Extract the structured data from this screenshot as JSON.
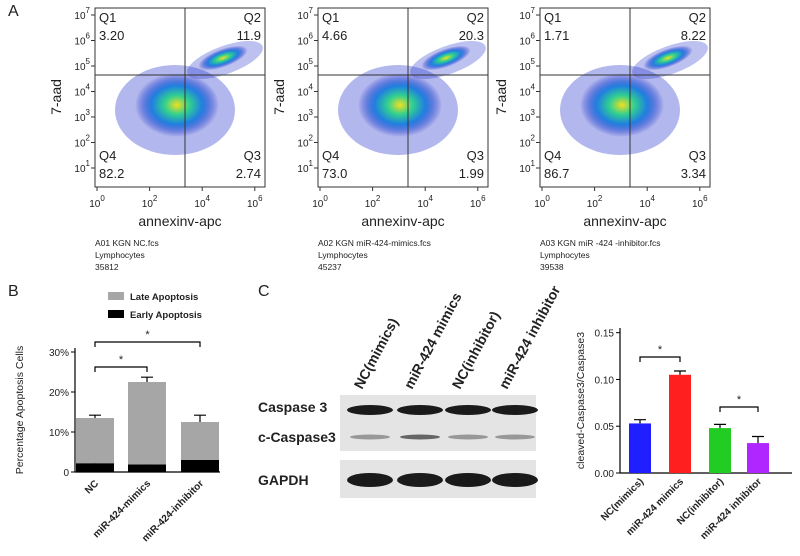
{
  "panel_labels": [
    "A",
    "B",
    "C"
  ],
  "flow_plots": {
    "x_label": "annexinv-apc",
    "y_label": "7-aad",
    "tick_base": "10",
    "xtick_exps": [
      0,
      2,
      4,
      6
    ],
    "ytick_exps": [
      1,
      2,
      3,
      4,
      5,
      6,
      7
    ],
    "plots": [
      {
        "quadrants": [
          {
            "label": "Q1",
            "value": "3.20"
          },
          {
            "label": "Q2",
            "value": "11.9"
          },
          {
            "label": "Q3",
            "value": "2.74"
          },
          {
            "label": "Q4",
            "value": "82.2"
          }
        ],
        "caption": [
          "A01 KGN NC.fcs",
          "Lymphocytes",
          "35812"
        ]
      },
      {
        "quadrants": [
          {
            "label": "Q1",
            "value": "4.66"
          },
          {
            "label": "Q2",
            "value": "20.3"
          },
          {
            "label": "Q3",
            "value": "1.99"
          },
          {
            "label": "Q4",
            "value": "73.0"
          }
        ],
        "caption": [
          "A02 KGN miR-424-mimics.fcs",
          "Lymphocytes",
          "45237"
        ]
      },
      {
        "quadrants": [
          {
            "label": "Q1",
            "value": "1.71"
          },
          {
            "label": "Q2",
            "value": "8.22"
          },
          {
            "label": "Q3",
            "value": "3.34"
          },
          {
            "label": "Q4",
            "value": "86.7"
          }
        ],
        "caption": [
          "A03 KGN miR -424 -inhibitor.fcs",
          "Lymphocytes",
          "39538"
        ]
      }
    ]
  },
  "blot": {
    "lanes": [
      "NC(mimics)",
      "miR-424 mimics",
      "NC(inhibitor)",
      "miR-424 inhibitor"
    ],
    "rows": [
      "Caspase 3",
      "c-Caspase3",
      "GAPDH"
    ]
  },
  "chart_data": [
    {
      "type": "bar",
      "stacked": true,
      "y_label": "Percentage Apoptosis Cells",
      "categories": [
        "NC",
        "miR-424-mimics",
        "miR-424-inhibitor"
      ],
      "series": [
        {
          "name": "Early Apoptosis",
          "color": "#000000",
          "values": [
            2.2,
            1.9,
            3.0
          ],
          "errors": [
            0.5,
            0.3,
            0.4
          ]
        },
        {
          "name": "Late Apoptosis",
          "color": "#a6a6a6",
          "values": [
            11.3,
            20.6,
            9.5
          ],
          "errors": [
            0.7,
            1.2,
            1.7
          ]
        }
      ],
      "ylim": [
        0,
        31
      ],
      "yticks": [
        0,
        {
          "value": 10,
          "label": "10%"
        },
        {
          "value": 20,
          "label": "20%"
        },
        {
          "value": 30,
          "label": "30%"
        }
      ],
      "annotations": [
        "*",
        "*"
      ]
    },
    {
      "type": "bar",
      "y_label": "cleaved-Caspase3/Caspase3",
      "categories": [
        "NC(mimics)",
        "miR-424 mimics",
        "NC(inhibitor)",
        "miR-424 inhibitor"
      ],
      "values": [
        0.053,
        0.105,
        0.048,
        0.032
      ],
      "errors": [
        0.004,
        0.004,
        0.004,
        0.007
      ],
      "colors": [
        "#1f1fff",
        "#ff1f1f",
        "#22cc22",
        "#b026ff"
      ],
      "ylim": [
        0,
        0.155
      ],
      "yticks": [
        {
          "value": 0,
          "label": "0.00"
        },
        {
          "value": 0.05,
          "label": "0.05"
        },
        {
          "value": 0.1,
          "label": "0.10"
        },
        {
          "value": 0.15,
          "label": "0.15"
        }
      ],
      "annotations": [
        "*",
        "*"
      ]
    }
  ]
}
